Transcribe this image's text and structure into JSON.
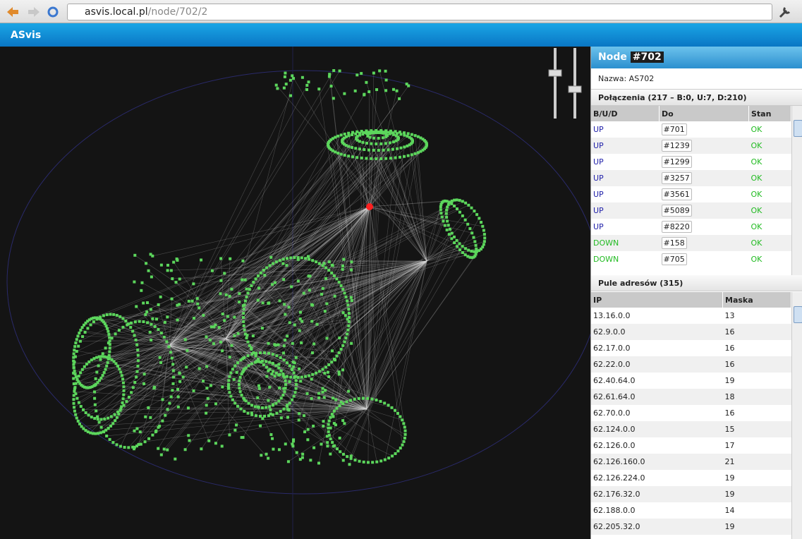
{
  "browser": {
    "url_host": "asvis.local.pl",
    "url_path": "/node/702/2"
  },
  "app": {
    "title": "ASvis"
  },
  "panel": {
    "node_label": "Node",
    "node_id": "#702",
    "name": "Nazwa: AS702",
    "connections": {
      "title": "Połączenia (217 – B:0, U:7, D:210)",
      "columns": [
        "B/U/D",
        "Do",
        "Stan"
      ],
      "rows": [
        [
          "UP",
          "#701",
          "OK"
        ],
        [
          "UP",
          "#1239",
          "OK"
        ],
        [
          "UP",
          "#1299",
          "OK"
        ],
        [
          "UP",
          "#3257",
          "OK"
        ],
        [
          "UP",
          "#3561",
          "OK"
        ],
        [
          "UP",
          "#5089",
          "OK"
        ],
        [
          "UP",
          "#8220",
          "OK"
        ],
        [
          "DOWN",
          "#158",
          "OK"
        ],
        [
          "DOWN",
          "#705",
          "OK"
        ]
      ]
    },
    "pools": {
      "title": "Pule adresów (315)",
      "columns": [
        "IP",
        "Maska"
      ],
      "rows": [
        [
          "13.16.0.0",
          13
        ],
        [
          "62.9.0.0",
          16
        ],
        [
          "62.17.0.0",
          16
        ],
        [
          "62.22.0.0",
          16
        ],
        [
          "62.40.64.0",
          19
        ],
        [
          "62.61.64.0",
          18
        ],
        [
          "62.70.0.0",
          16
        ],
        [
          "62.124.0.0",
          15
        ],
        [
          "62.126.0.0",
          17
        ],
        [
          "62.126.160.0",
          21
        ],
        [
          "62.126.224.0",
          19
        ],
        [
          "62.176.32.0",
          19
        ],
        [
          "62.188.0.0",
          14
        ],
        [
          "62.205.32.0",
          19
        ]
      ]
    }
  }
}
